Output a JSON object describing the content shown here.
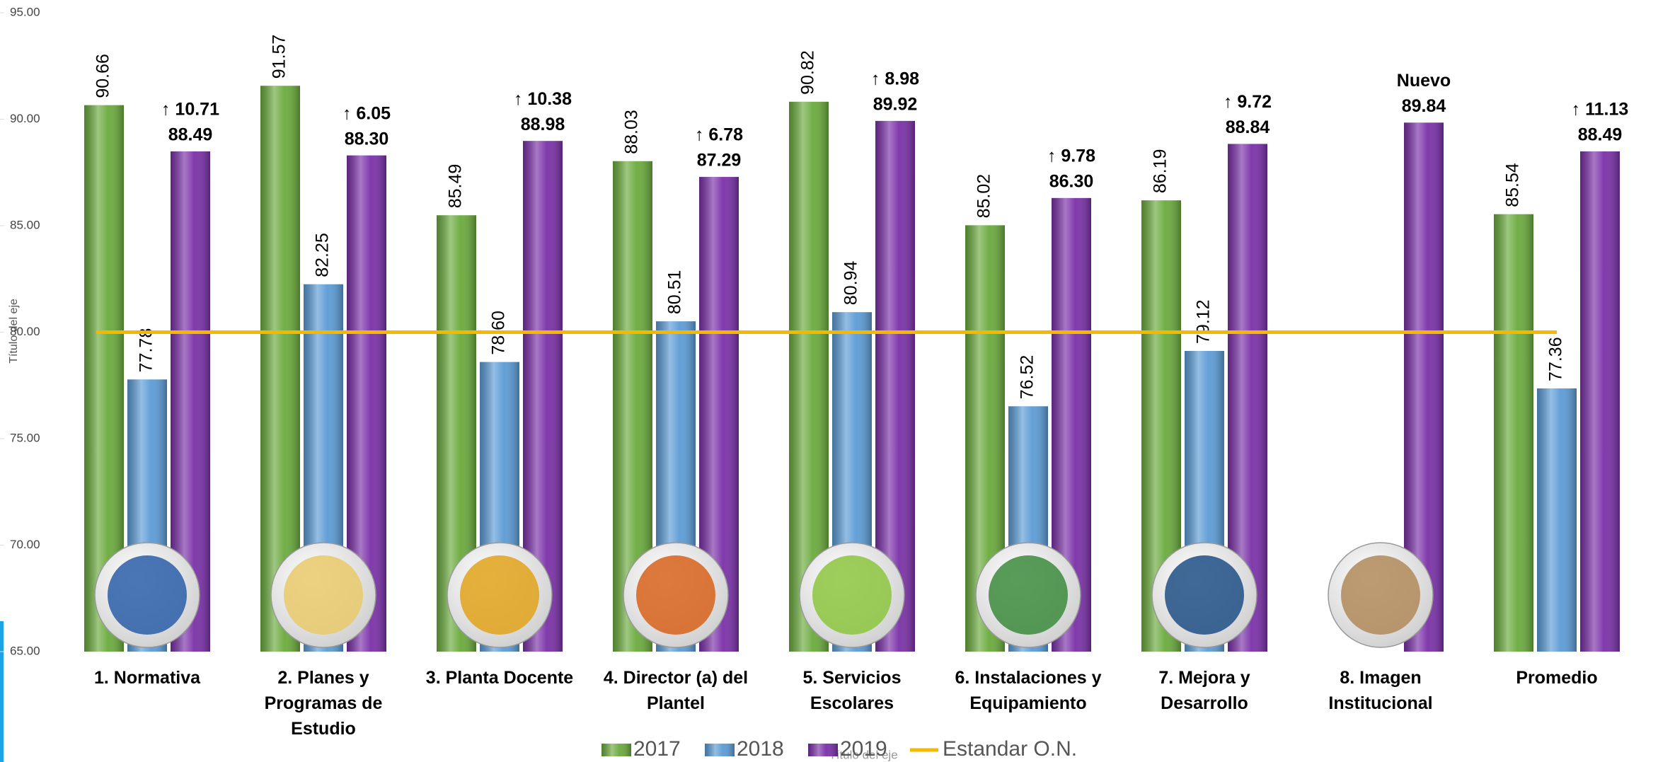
{
  "chart_data": {
    "type": "bar",
    "y_label": "Título del eje",
    "x_label": "Título del eje",
    "categories": [
      "1. Normativa",
      "2. Planes y\nProgramas de\nEstudio",
      "3. Planta Docente",
      "4. Director (a) del\nPlantel",
      "5. Servicios\nEscolares",
      "6. Instalaciones y\nEquipamiento",
      "7. Mejora y\nDesarrollo",
      "8. Imagen\nInstitucional",
      "Promedio"
    ],
    "series": [
      {
        "name": "2017",
        "color": "#6aaa3c",
        "values": [
          90.66,
          91.57,
          85.49,
          88.03,
          90.82,
          85.02,
          86.19,
          null,
          85.54
        ],
        "value_labels": [
          "90.66",
          "91.57",
          "85.49",
          "88.03",
          "90.82",
          "85.02",
          "86.19",
          null,
          "85.54"
        ]
      },
      {
        "name": "2018",
        "color": "#5b9bd5",
        "values": [
          77.78,
          82.25,
          78.6,
          80.51,
          80.94,
          76.52,
          79.12,
          null,
          77.36
        ],
        "value_labels": [
          "77.78",
          "82.25",
          "78.60",
          "80.51",
          "80.94",
          "76.52",
          "79.12",
          null,
          "77.36"
        ]
      },
      {
        "name": "2019",
        "color": "#7a30a8",
        "values": [
          88.49,
          88.3,
          88.98,
          87.29,
          89.92,
          86.3,
          88.84,
          89.84,
          88.49
        ],
        "value_labels": [
          "88.49",
          "88.30",
          "88.98",
          "87.29",
          "89.92",
          "86.30",
          "88.84",
          "89.84",
          "88.49"
        ]
      }
    ],
    "change_labels": [
      "↑ 10.71",
      "↑ 6.05",
      "↑ 10.38",
      "↑ 6.78",
      "↑ 8.98",
      "↑ 9.78",
      "↑ 9.72",
      "Nuevo",
      "↑ 11.13"
    ],
    "reference_line": {
      "name": "Estandar O.N.",
      "value": 80,
      "color": "#f5b800"
    },
    "ylim": [
      65,
      95
    ],
    "yticks": [
      {
        "value": 65,
        "label": "65.00"
      },
      {
        "value": 70,
        "label": "70.00"
      },
      {
        "value": 75,
        "label": "75.00"
      },
      {
        "value": 80,
        "label": "80.00"
      },
      {
        "value": 85,
        "label": "85.00"
      },
      {
        "value": 90,
        "label": "90.00"
      },
      {
        "value": 95,
        "label": "95.00"
      }
    ],
    "grid": false,
    "legend": "bottom"
  }
}
